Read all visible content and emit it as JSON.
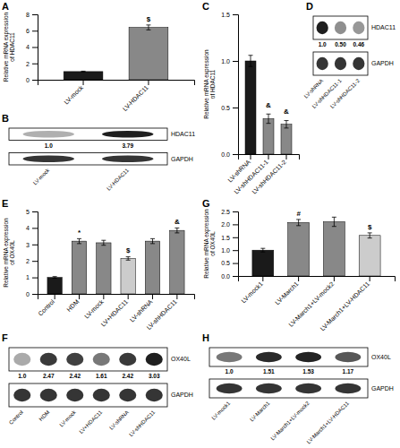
{
  "chart_data": [
    {
      "type": "bar",
      "title": "A",
      "categories": [
        "LV-mock",
        "LV-HDAC11"
      ],
      "values": [
        1.0,
        6.4
      ],
      "errors": [
        0.05,
        0.3
      ],
      "colors": [
        "#1a1a1a",
        "#888888"
      ],
      "y_label": "Relative mRNA expression\nof HDAC11",
      "ylim": [
        0,
        8
      ],
      "yticks": [
        0,
        2,
        4,
        6,
        8
      ],
      "annotations": [
        {
          "category": "LV-HDAC11",
          "text": "$"
        }
      ]
    },
    {
      "type": "blot",
      "title": "B",
      "categories": [
        "LV-mock",
        "LV-HDAC11"
      ],
      "series": [
        {
          "name": "HDAC11",
          "values": [
            0.35,
            1.0
          ]
        },
        {
          "name": "GAPDH",
          "values": [
            0.9,
            0.9
          ]
        }
      ],
      "annotations": [
        "1.0",
        "3.79"
      ]
    },
    {
      "type": "bar",
      "title": "C",
      "categories": [
        "LV-shRNA",
        "LV-shHDAC11-1",
        "LV-shHDAC11-2"
      ],
      "values": [
        1.0,
        0.38,
        0.32
      ],
      "errors": [
        0.06,
        0.05,
        0.04
      ],
      "colors": [
        "#1a1a1a",
        "#888888",
        "#888888"
      ],
      "y_label": "Relative mRNA expression\nof HDAC11",
      "ylim": [
        0.0,
        1.5
      ],
      "yticks": [
        {
          "value": 0.0,
          "label": "0.0"
        },
        0.5,
        {
          "value": 1.0,
          "label": "1.0"
        },
        1.5
      ],
      "annotations": [
        {
          "category": "LV-shHDAC11-1",
          "text": "&"
        },
        {
          "category": "LV-shHDAC11-2",
          "text": "&"
        }
      ]
    },
    {
      "type": "blot",
      "title": "D",
      "categories": [
        "LV-shRNA",
        "LV-shHDAC11-1",
        "LV-shHDAC11-2"
      ],
      "series": [
        {
          "name": "HDAC11",
          "values": [
            1.0,
            0.5,
            0.46
          ]
        },
        {
          "name": "GAPDH",
          "values": [
            0.9,
            0.9,
            0.9
          ]
        }
      ],
      "annotations": [
        "1.0",
        "0.50",
        "0.46"
      ]
    },
    {
      "type": "bar",
      "title": "E",
      "categories": [
        "Control",
        "HDM",
        "LV-mock",
        "LV+HDAC11",
        "LV-shRNA",
        "LV-shHDAC11"
      ],
      "values": [
        1.0,
        3.2,
        3.1,
        2.15,
        3.2,
        3.85
      ],
      "errors": [
        0.05,
        0.15,
        0.15,
        0.1,
        0.15,
        0.15
      ],
      "colors": [
        "#1a1a1a",
        "#888888",
        "#888888",
        "#cccccc",
        "#888888",
        "#888888"
      ],
      "y_label": "Relative mRNA expression\nof OX40L",
      "ylim": [
        0,
        5
      ],
      "yticks": [
        0,
        1,
        2,
        3,
        4,
        5
      ],
      "annotations": [
        {
          "category": "HDM",
          "text": "*"
        },
        {
          "category": "LV+HDAC11",
          "text": "$"
        },
        {
          "category": "LV-shHDAC11",
          "text": "&"
        }
      ]
    },
    {
      "type": "blot",
      "title": "F",
      "categories": [
        "Control",
        "HDM",
        "LV-mock",
        "LV+HDAC11",
        "LV-shRNA",
        "LV-shHDAC11"
      ],
      "series": [
        {
          "name": "OX40L",
          "values": [
            0.38,
            0.88,
            0.85,
            0.6,
            0.88,
            1.0
          ]
        },
        {
          "name": "GAPDH",
          "values": [
            0.9,
            0.9,
            0.9,
            0.9,
            0.9,
            0.9
          ]
        }
      ],
      "annotations": [
        "1.0",
        "2.47",
        "2.42",
        "1.61",
        "2.42",
        "3.03"
      ]
    },
    {
      "type": "bar",
      "title": "G",
      "categories": [
        "LV-mock1",
        "LV-March1",
        "LV-March1+LV-mock2",
        "LV-March1+LV-HDAC11"
      ],
      "values": [
        1.0,
        2.07,
        2.1,
        1.57
      ],
      "errors": [
        0.07,
        0.12,
        0.18,
        0.1
      ],
      "colors": [
        "#1a1a1a",
        "#888888",
        "#888888",
        "#cccccc"
      ],
      "y_label": "Relative mRNA expression\nof OX40L",
      "ylim": [
        0.0,
        2.5
      ],
      "yticks": [
        {
          "value": 0.0,
          "label": "0.0"
        },
        0.5,
        {
          "value": 1.0,
          "label": "1.0"
        },
        1.5,
        {
          "value": 2.0,
          "label": "2.0"
        },
        2.5
      ],
      "annotations": [
        {
          "category": "LV-March1",
          "text": "#"
        },
        {
          "category": "LV-March1+LV-HDAC11",
          "text": "$"
        }
      ]
    },
    {
      "type": "blot",
      "title": "H",
      "categories": [
        "LV-mock1",
        "LV-March1",
        "LV-March1+LV-mock2",
        "LV-March1+LV-HDAC11"
      ],
      "series": [
        {
          "name": "OX40L",
          "values": [
            0.6,
            0.95,
            0.98,
            0.75
          ]
        },
        {
          "name": "GAPDH",
          "values": [
            0.9,
            0.9,
            0.9,
            0.9
          ]
        }
      ],
      "annotations": [
        "1.0",
        "1.51",
        "1.53",
        "1.17"
      ]
    }
  ]
}
